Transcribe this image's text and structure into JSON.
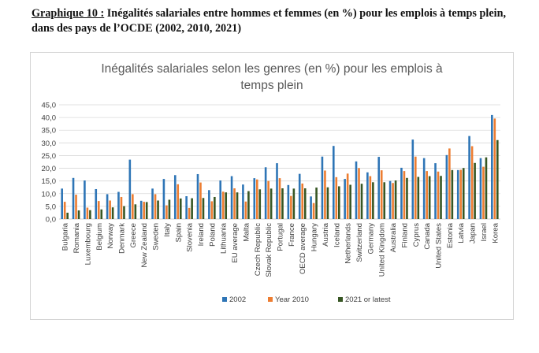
{
  "document": {
    "heading_lead": "Graphique 10 :",
    "heading_rest": " Inégalités salariales entre hommes et femmes (en %) pour les emplois à temps plein, dans des pays de l’OCDE (2002, 2010, 2021)"
  },
  "chart_data": {
    "type": "bar",
    "title": "Inégalités salariales selon les genres (en %) pour les emplois à temps plein",
    "xlabel": "",
    "ylabel": "",
    "ylim": [
      0,
      45
    ],
    "yticks": [
      "0,0",
      "5,0",
      "10,0",
      "15,0",
      "20,0",
      "25,0",
      "30,0",
      "35,0",
      "40,0",
      "45,0"
    ],
    "grid": true,
    "legend_position": "bottom",
    "categories": [
      "Bulgaria",
      "Romania",
      "Luxembourg",
      "Belgium",
      "Norway",
      "Denmark",
      "Greece",
      "New Zealand",
      "Sweden",
      "Italy",
      "Spain",
      "Slovenia",
      "Ireland",
      "Poland",
      "Lithuania",
      "EU average",
      "Malta",
      "Czech Republic",
      "Slovak Republic",
      "Portugal",
      "France",
      "OECD average",
      "Hungary",
      "Austria",
      "Iceland",
      "Netherlands",
      "Switzerland",
      "Germany",
      "United Kingdom",
      "Australia",
      "Finland",
      "Cyprus",
      "Canada",
      "United States",
      "Estonia",
      "Latvia",
      "Japan",
      "Israel",
      "Korea"
    ],
    "series": [
      {
        "name": "2002",
        "color": "#2e75b6",
        "values": [
          12,
          16.2,
          15.2,
          11.8,
          9.8,
          10.7,
          23.4,
          7.2,
          12,
          15.8,
          17.3,
          9,
          17.7,
          11.4,
          15.2,
          16.9,
          13.6,
          16.1,
          20.4,
          22,
          13.4,
          17.8,
          8.9,
          24.6,
          28.8,
          15.8,
          22.7,
          18.4,
          24.5,
          15,
          20.2,
          31.3,
          24,
          22,
          25.2,
          19.3,
          32.7,
          24,
          41
        ]
      },
      {
        "name": "Year 2010",
        "color": "#ed7d31",
        "values": [
          6.8,
          9.6,
          4.5,
          7.1,
          7.3,
          8.7,
          9.8,
          6.8,
          9.8,
          5.4,
          13.7,
          4.4,
          14.4,
          7,
          10.8,
          12.1,
          6.9,
          15.6,
          15,
          16.1,
          9.1,
          14,
          6.3,
          19.1,
          16.5,
          17.9,
          20.1,
          16.9,
          19.2,
          14.2,
          18.9,
          24.6,
          18.9,
          18.7,
          27.8,
          19.4,
          28.7,
          20.6,
          39.6
        ]
      },
      {
        "name": "2021 or latest",
        "color": "#375623",
        "values": [
          2.5,
          3.4,
          3.5,
          3.8,
          4.6,
          5.1,
          5.8,
          6.7,
          7.3,
          7.6,
          8.1,
          8.2,
          8.3,
          8.7,
          10.5,
          10.5,
          11,
          11.7,
          12,
          12.1,
          12,
          12.1,
          12.4,
          12.5,
          12.9,
          13.5,
          13.9,
          14.5,
          14.5,
          15.2,
          16.2,
          16.6,
          16.9,
          17,
          19.3,
          20.1,
          22.1,
          24.3,
          31.1
        ]
      }
    ]
  }
}
